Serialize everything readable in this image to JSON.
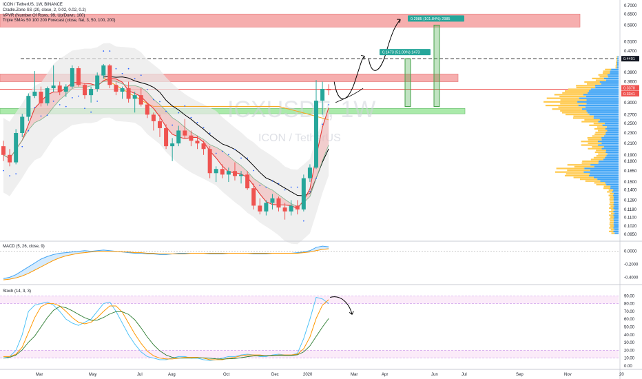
{
  "header": {
    "title": "ICON / TetherUS, 1W, BINANCE",
    "indicators": [
      "Cradle.Zone SS (20, close, 2, 0.02, 0.02, 0.2)",
      "VPVR (Number Of Rows, 99, Up/Down, 100)",
      "Triple SMAs 50 100 200 Forecast (close, flat, 3, 50, 100, 200)"
    ]
  },
  "watermark": {
    "symbol": "ICXUSDT, 1W",
    "name": "ICON / TetherUS"
  },
  "colors": {
    "up": "#26a69a",
    "down": "#ef5350",
    "resistance": "#f28b8b",
    "support": "#8ee38e",
    "vp_up": "#42a5f5",
    "vp_down": "#ffc94d",
    "sma50": "#000000",
    "sma100": "#f5a623",
    "ema_fast": "#e53935",
    "band": "#e8e8e8",
    "macd": "#42a5f5",
    "signal": "#ff9800",
    "stoch_k": "#4fc3f7",
    "stoch_d": "#ff9800"
  },
  "chart_data": [
    {
      "type": "candlestick",
      "name": "price",
      "x": [
        "2019-02-04",
        "2019-02-11",
        "2019-02-18",
        "2019-02-25",
        "2019-03-04",
        "2019-03-11",
        "2019-03-18",
        "2019-03-25",
        "2019-04-01",
        "2019-04-08",
        "2019-04-15",
        "2019-04-22",
        "2019-04-29",
        "2019-05-06",
        "2019-05-13",
        "2019-05-20",
        "2019-05-27",
        "2019-06-03",
        "2019-06-10",
        "2019-06-17",
        "2019-06-24",
        "2019-07-01",
        "2019-07-08",
        "2019-07-15",
        "2019-07-22",
        "2019-07-29",
        "2019-08-05",
        "2019-08-12",
        "2019-08-19",
        "2019-08-26",
        "2019-09-02",
        "2019-09-09",
        "2019-09-16",
        "2019-09-23",
        "2019-09-30",
        "2019-10-07",
        "2019-10-14",
        "2019-10-21",
        "2019-10-28",
        "2019-11-04",
        "2019-11-11",
        "2019-11-18",
        "2019-11-25",
        "2019-12-02",
        "2019-12-09",
        "2019-12-16",
        "2019-12-23",
        "2019-12-30",
        "2020-01-06",
        "2020-01-13",
        "2020-01-20",
        "2020-01-27",
        "2020-02-03"
      ],
      "ohlc": [
        [
          0.205,
          0.215,
          0.18,
          0.19
        ],
        [
          0.19,
          0.2,
          0.172,
          0.178
        ],
        [
          0.178,
          0.238,
          0.175,
          0.23
        ],
        [
          0.23,
          0.272,
          0.222,
          0.265
        ],
        [
          0.265,
          0.325,
          0.255,
          0.318
        ],
        [
          0.318,
          0.395,
          0.312,
          0.33
        ],
        [
          0.33,
          0.345,
          0.29,
          0.298
        ],
        [
          0.298,
          0.345,
          0.292,
          0.34
        ],
        [
          0.34,
          0.415,
          0.33,
          0.348
        ],
        [
          0.348,
          0.36,
          0.32,
          0.33
        ],
        [
          0.33,
          0.352,
          0.315,
          0.345
        ],
        [
          0.345,
          0.415,
          0.34,
          0.405
        ],
        [
          0.405,
          0.412,
          0.345,
          0.35
        ],
        [
          0.35,
          0.355,
          0.31,
          0.32
        ],
        [
          0.32,
          0.345,
          0.3,
          0.338
        ],
        [
          0.338,
          0.39,
          0.33,
          0.38
        ],
        [
          0.38,
          0.42,
          0.37,
          0.415
        ],
        [
          0.415,
          0.42,
          0.34,
          0.35
        ],
        [
          0.35,
          0.36,
          0.32,
          0.33
        ],
        [
          0.33,
          0.345,
          0.31,
          0.34
        ],
        [
          0.34,
          0.36,
          0.3,
          0.31
        ],
        [
          0.31,
          0.33,
          0.275,
          0.32
        ],
        [
          0.32,
          0.34,
          0.29,
          0.295
        ],
        [
          0.295,
          0.3,
          0.262,
          0.27
        ],
        [
          0.27,
          0.275,
          0.235,
          0.255
        ],
        [
          0.255,
          0.27,
          0.222,
          0.24
        ],
        [
          0.24,
          0.248,
          0.2,
          0.205
        ],
        [
          0.205,
          0.22,
          0.18,
          0.21
        ],
        [
          0.21,
          0.245,
          0.205,
          0.235
        ],
        [
          0.235,
          0.26,
          0.22,
          0.225
        ],
        [
          0.225,
          0.235,
          0.205,
          0.215
        ],
        [
          0.215,
          0.225,
          0.2,
          0.21
        ],
        [
          0.21,
          0.215,
          0.19,
          0.2
        ],
        [
          0.2,
          0.205,
          0.155,
          0.162
        ],
        [
          0.162,
          0.172,
          0.15,
          0.168
        ],
        [
          0.168,
          0.175,
          0.155,
          0.16
        ],
        [
          0.16,
          0.17,
          0.15,
          0.165
        ],
        [
          0.165,
          0.178,
          0.152,
          0.158
        ],
        [
          0.158,
          0.165,
          0.148,
          0.16
        ],
        [
          0.16,
          0.165,
          0.14,
          0.142
        ],
        [
          0.142,
          0.148,
          0.118,
          0.122
        ],
        [
          0.122,
          0.13,
          0.113,
          0.116
        ],
        [
          0.116,
          0.128,
          0.112,
          0.125
        ],
        [
          0.125,
          0.135,
          0.118,
          0.13
        ],
        [
          0.13,
          0.132,
          0.116,
          0.12
        ],
        [
          0.12,
          0.125,
          0.108,
          0.116
        ],
        [
          0.116,
          0.128,
          0.112,
          0.122
        ],
        [
          0.122,
          0.128,
          0.113,
          0.118
        ],
        [
          0.118,
          0.16,
          0.116,
          0.155
        ],
        [
          0.155,
          0.175,
          0.15,
          0.17
        ],
        [
          0.17,
          0.365,
          0.168,
          0.305
        ],
        [
          0.305,
          0.36,
          0.27,
          0.338
        ],
        [
          0.338,
          0.352,
          0.32,
          0.334
        ]
      ]
    },
    {
      "type": "horizontal-bar",
      "name": "volume-profile",
      "price_min": 0.095,
      "price_max": 0.45,
      "rows": 99
    },
    {
      "type": "line",
      "name": "MACD",
      "title": "MACD (5, 26, close, 9)",
      "y_ticks": [
        0.0,
        -0.2,
        -0.4
      ],
      "macd": [
        -0.42,
        -0.4,
        -0.36,
        -0.3,
        -0.24,
        -0.18,
        -0.12,
        -0.08,
        -0.05,
        -0.03,
        -0.02,
        -0.01,
        0.0,
        0.01,
        0.0,
        0.01,
        0.02,
        0.01,
        0.0,
        -0.01,
        -0.02,
        -0.03,
        -0.03,
        -0.04,
        -0.04,
        -0.05,
        -0.05,
        -0.04,
        -0.03,
        -0.03,
        -0.03,
        -0.03,
        -0.03,
        -0.04,
        -0.04,
        -0.04,
        -0.03,
        -0.03,
        -0.03,
        -0.03,
        -0.04,
        -0.04,
        -0.04,
        -0.03,
        -0.03,
        -0.03,
        -0.03,
        -0.02,
        -0.01,
        0.01,
        0.06,
        0.08,
        0.07
      ],
      "signal": [
        -0.44,
        -0.43,
        -0.41,
        -0.38,
        -0.34,
        -0.29,
        -0.24,
        -0.19,
        -0.14,
        -0.1,
        -0.07,
        -0.05,
        -0.03,
        -0.02,
        -0.01,
        0.0,
        0.0,
        0.0,
        0.0,
        -0.01,
        -0.01,
        -0.02,
        -0.02,
        -0.03,
        -0.03,
        -0.04,
        -0.04,
        -0.04,
        -0.04,
        -0.04,
        -0.03,
        -0.03,
        -0.03,
        -0.03,
        -0.03,
        -0.03,
        -0.03,
        -0.03,
        -0.03,
        -0.03,
        -0.03,
        -0.03,
        -0.03,
        -0.03,
        -0.03,
        -0.03,
        -0.03,
        -0.03,
        -0.02,
        -0.01,
        0.01,
        0.03,
        0.04
      ]
    },
    {
      "type": "line",
      "name": "Stoch",
      "title": "Stoch (14, 3, 3)",
      "y_ticks": [
        90.0,
        80.0,
        70.0,
        60.0,
        50.0,
        40.0,
        30.0,
        20.0,
        10.0,
        0.0
      ],
      "k": [
        10,
        12,
        20,
        40,
        70,
        78,
        80,
        82,
        78,
        70,
        60,
        55,
        52,
        56,
        60,
        70,
        80,
        82,
        70,
        55,
        40,
        28,
        18,
        12,
        10,
        8,
        8,
        10,
        12,
        12,
        10,
        10,
        8,
        7,
        8,
        10,
        12,
        12,
        14,
        15,
        14,
        12,
        12,
        14,
        15,
        14,
        14,
        16,
        35,
        60,
        88,
        86,
        80
      ],
      "d": [
        12,
        12,
        15,
        24,
        43,
        62,
        76,
        80,
        80,
        77,
        70,
        62,
        56,
        54,
        56,
        62,
        70,
        77,
        77,
        69,
        55,
        41,
        29,
        19,
        13,
        10,
        9,
        9,
        10,
        11,
        11,
        11,
        10,
        8,
        8,
        8,
        10,
        11,
        13,
        14,
        14,
        14,
        13,
        13,
        14,
        14,
        14,
        15,
        22,
        37,
        61,
        78,
        85
      ]
    }
  ],
  "price_axis": {
    "ticks": [
      "0.7000",
      "0.6500",
      "0.5900",
      "0.5100",
      "0.4700",
      "0.3900",
      "0.3600",
      "0.3000",
      "0.2700",
      "0.2500",
      "0.2300",
      "0.2100",
      "0.1900",
      "0.1800",
      "0.1650",
      "0.1500",
      "0.1400",
      "0.1280",
      "0.1180",
      "0.1100",
      "0.1020",
      "0.0950"
    ],
    "tick_values": [
      0.7,
      0.65,
      0.59,
      0.51,
      0.47,
      0.39,
      0.36,
      0.3,
      0.27,
      0.25,
      0.23,
      0.21,
      0.19,
      0.18,
      0.165,
      0.15,
      0.14,
      0.128,
      0.118,
      0.11,
      0.102,
      0.095
    ],
    "markers": [
      {
        "label": "0.4401",
        "value": 0.4401,
        "color": "#131722"
      },
      {
        "label": "0.3370",
        "value": 0.337,
        "color": "#ef5350"
      },
      {
        "label": "0.3341",
        "value": 0.3341,
        "color": "#ef5350"
      }
    ]
  },
  "time_axis": [
    "Mar",
    "May",
    "Jul",
    "Aug",
    "Oct",
    "Dec",
    "2020",
    "Mar",
    "Apr",
    "Jun",
    "Jul",
    "Sep",
    "Nov",
    "20"
  ],
  "annotations": {
    "target1": "0.1473 (51.00%) 1473",
    "target2": "0.2985 (101.84%) 2985",
    "zones": {
      "resistance_top": [
        0.58,
        0.65
      ],
      "resistance_mid": [
        0.36,
        0.385
      ],
      "support": [
        0.272,
        0.285
      ],
      "dashed_level": 0.4401,
      "red_level": 0.337
    }
  }
}
